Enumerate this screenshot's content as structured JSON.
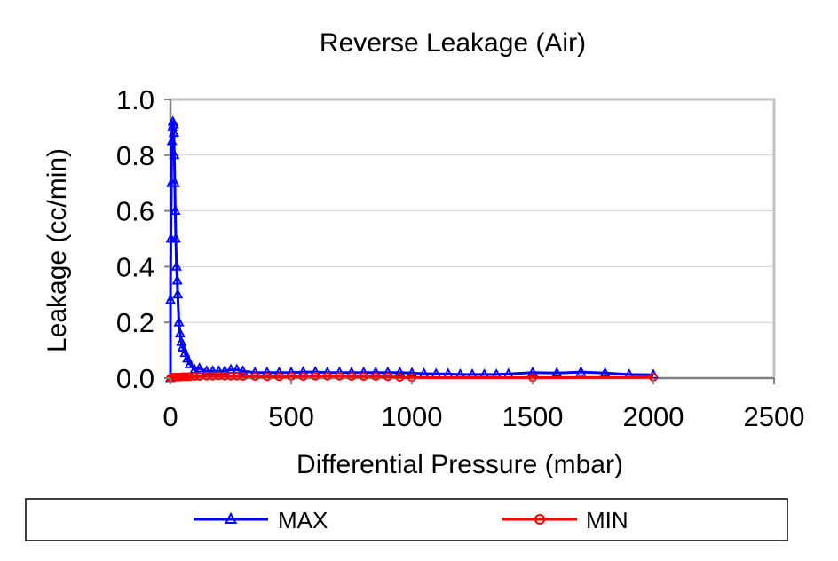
{
  "chart_data": {
    "type": "line",
    "title": "Reverse Leakage (Air)",
    "xlabel": "Differential Pressure (mbar)",
    "ylabel": "Leakage (cc/min)",
    "xlim": [
      0,
      2500
    ],
    "ylim": [
      0,
      1.0
    ],
    "x_ticks": [
      "0",
      "500",
      "1000",
      "1500",
      "2000",
      "2500"
    ],
    "y_ticks": [
      "0.0",
      "0.2",
      "0.4",
      "0.6",
      "0.8",
      "1.0"
    ],
    "grid": "horizontal",
    "legend_position": "bottom",
    "series": [
      {
        "name": "MAX",
        "color": "#0000ff",
        "marker": "triangle",
        "points": [
          [
            0,
            0.0
          ],
          [
            0,
            0.28
          ],
          [
            2,
            0.5
          ],
          [
            4,
            0.7
          ],
          [
            6,
            0.85
          ],
          [
            8,
            0.9
          ],
          [
            10,
            0.92
          ],
          [
            12,
            0.91
          ],
          [
            14,
            0.88
          ],
          [
            16,
            0.8
          ],
          [
            18,
            0.7
          ],
          [
            20,
            0.6
          ],
          [
            22,
            0.5
          ],
          [
            25,
            0.4
          ],
          [
            28,
            0.35
          ],
          [
            30,
            0.3
          ],
          [
            35,
            0.2
          ],
          [
            40,
            0.16
          ],
          [
            45,
            0.13
          ],
          [
            50,
            0.11
          ],
          [
            60,
            0.09
          ],
          [
            70,
            0.07
          ],
          [
            80,
            0.05
          ],
          [
            100,
            0.03
          ],
          [
            120,
            0.035
          ],
          [
            150,
            0.025
          ],
          [
            175,
            0.025
          ],
          [
            200,
            0.025
          ],
          [
            225,
            0.025
          ],
          [
            250,
            0.03
          ],
          [
            275,
            0.03
          ],
          [
            300,
            0.025
          ],
          [
            350,
            0.02
          ],
          [
            400,
            0.02
          ],
          [
            450,
            0.02
          ],
          [
            500,
            0.02
          ],
          [
            550,
            0.022
          ],
          [
            600,
            0.022
          ],
          [
            650,
            0.02
          ],
          [
            700,
            0.02
          ],
          [
            750,
            0.02
          ],
          [
            800,
            0.02
          ],
          [
            850,
            0.02
          ],
          [
            900,
            0.02
          ],
          [
            950,
            0.02
          ],
          [
            1000,
            0.018
          ],
          [
            1050,
            0.016
          ],
          [
            1100,
            0.015
          ],
          [
            1150,
            0.015
          ],
          [
            1200,
            0.013
          ],
          [
            1250,
            0.013
          ],
          [
            1300,
            0.013
          ],
          [
            1350,
            0.013
          ],
          [
            1400,
            0.015
          ],
          [
            1500,
            0.02
          ],
          [
            1600,
            0.018
          ],
          [
            1700,
            0.022
          ],
          [
            1800,
            0.018
          ],
          [
            1900,
            0.013
          ],
          [
            2000,
            0.012
          ]
        ]
      },
      {
        "name": "MIN",
        "color": "#ff0000",
        "marker": "circle",
        "points": [
          [
            0,
            0.0
          ],
          [
            5,
            0.002
          ],
          [
            10,
            0.003
          ],
          [
            15,
            0.003
          ],
          [
            20,
            0.004
          ],
          [
            30,
            0.004
          ],
          [
            40,
            0.004
          ],
          [
            50,
            0.005
          ],
          [
            60,
            0.005
          ],
          [
            70,
            0.005
          ],
          [
            80,
            0.005
          ],
          [
            100,
            0.006
          ],
          [
            120,
            0.006
          ],
          [
            150,
            0.007
          ],
          [
            175,
            0.007
          ],
          [
            200,
            0.008
          ],
          [
            225,
            0.007
          ],
          [
            250,
            0.007
          ],
          [
            275,
            0.007
          ],
          [
            300,
            0.006
          ],
          [
            350,
            0.006
          ],
          [
            400,
            0.005
          ],
          [
            450,
            0.005
          ],
          [
            500,
            0.006
          ],
          [
            550,
            0.006
          ],
          [
            600,
            0.007
          ],
          [
            650,
            0.007
          ],
          [
            700,
            0.007
          ],
          [
            750,
            0.006
          ],
          [
            800,
            0.006
          ],
          [
            850,
            0.006
          ],
          [
            900,
            0.005
          ],
          [
            950,
            0.003
          ],
          [
            1000,
            0.002
          ],
          [
            1500,
            0.002
          ],
          [
            2000,
            0.003
          ]
        ]
      }
    ]
  }
}
